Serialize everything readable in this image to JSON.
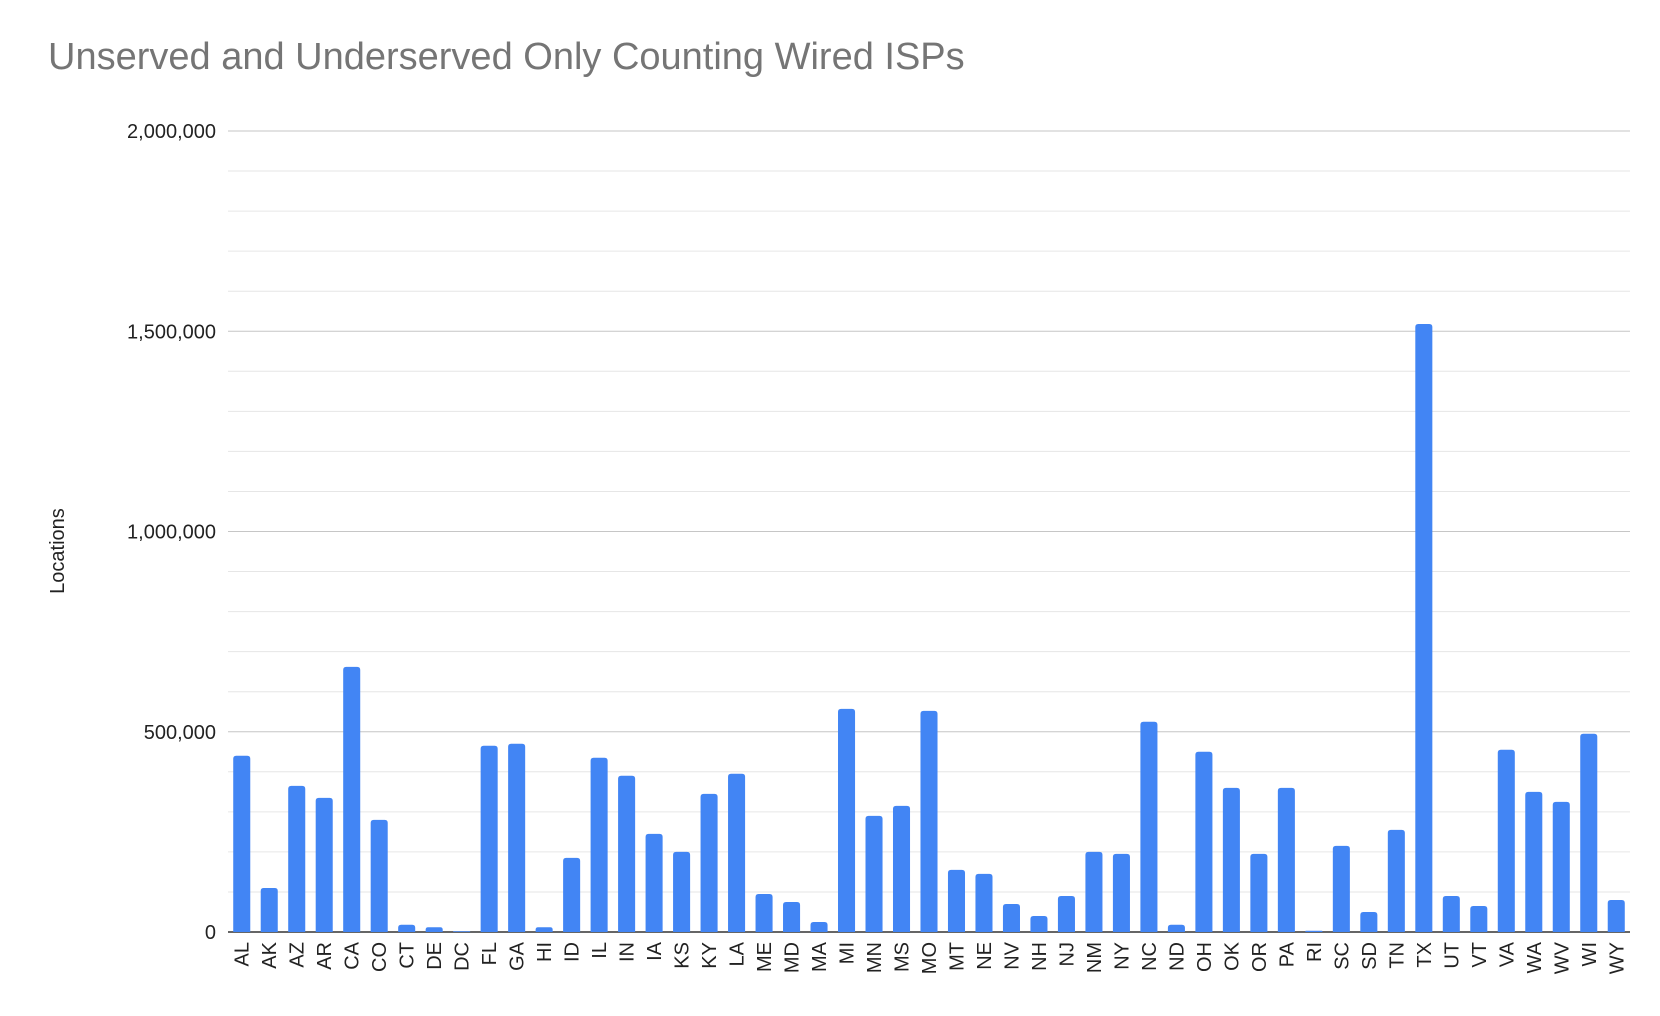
{
  "chart_data": {
    "type": "bar",
    "title": "Unserved and Underserved Only Counting Wired ISPs",
    "xlabel": "",
    "ylabel": "Locations",
    "ylim": [
      0,
      2000000
    ],
    "y_ticks": [
      0,
      500000,
      1000000,
      1500000,
      2000000
    ],
    "y_tick_labels": [
      "0",
      "500,000",
      "1,000,000",
      "1,500,000",
      "2,000,000"
    ],
    "grid": true,
    "bar_color": "#4285F4",
    "categories": [
      "AL",
      "AK",
      "AZ",
      "AR",
      "CA",
      "CO",
      "CT",
      "DE",
      "DC",
      "FL",
      "GA",
      "HI",
      "ID",
      "IL",
      "IN",
      "IA",
      "KS",
      "KY",
      "LA",
      "ME",
      "MD",
      "MA",
      "MI",
      "MN",
      "MS",
      "MO",
      "MT",
      "NE",
      "NV",
      "NH",
      "NJ",
      "NM",
      "NY",
      "NC",
      "ND",
      "OH",
      "OK",
      "OR",
      "PA",
      "RI",
      "SC",
      "SD",
      "TN",
      "TX",
      "UT",
      "VT",
      "VA",
      "WA",
      "WV",
      "WI",
      "WY"
    ],
    "values": [
      440000,
      110000,
      365000,
      335000,
      662000,
      280000,
      18000,
      12000,
      2000,
      465000,
      470000,
      12000,
      185000,
      435000,
      390000,
      245000,
      200000,
      345000,
      395000,
      95000,
      75000,
      25000,
      557000,
      290000,
      315000,
      552000,
      155000,
      145000,
      70000,
      40000,
      90000,
      200000,
      195000,
      525000,
      18000,
      450000,
      360000,
      195000,
      360000,
      3000,
      215000,
      50000,
      255000,
      1518000,
      90000,
      65000,
      455000,
      350000,
      325000,
      495000,
      80000
    ]
  }
}
